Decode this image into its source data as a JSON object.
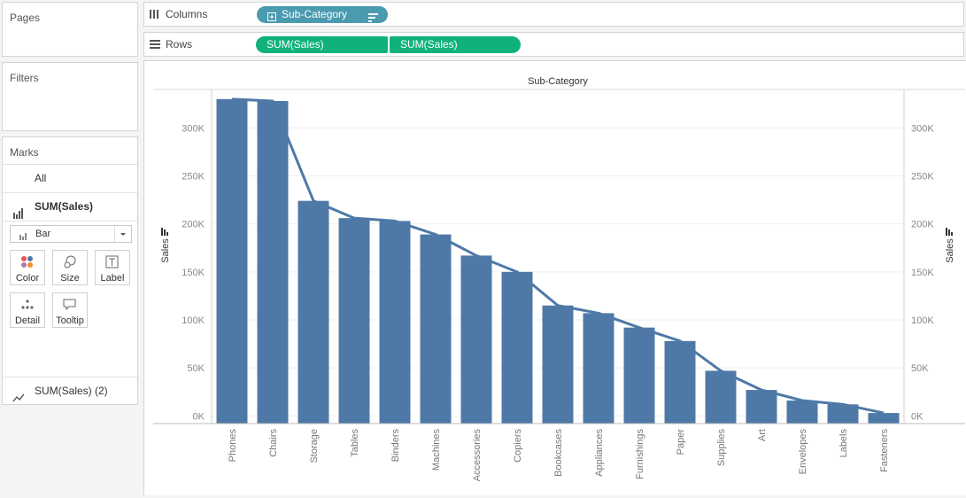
{
  "left_panel": {
    "pages_title": "Pages",
    "filters_title": "Filters",
    "marks": {
      "title": "Marks",
      "all_label": "All",
      "sum_sales_label": "SUM(Sales)",
      "mark_type": "Bar",
      "buttons": [
        "Color",
        "Size",
        "Label",
        "Detail",
        "Tooltip"
      ],
      "second_measure_label": "SUM(Sales) (2)"
    }
  },
  "shelves": {
    "columns_label": "Columns",
    "columns_pill": "Sub-Category",
    "rows_label": "Rows",
    "rows_pills": [
      "SUM(Sales)",
      "SUM(Sales)"
    ]
  },
  "colors": {
    "bar": "#4e79a7",
    "line": "#4e79a7",
    "pill_dimension": "#4a9ab0",
    "pill_measure": "#10b27a"
  },
  "chart_data": {
    "type": "bar",
    "title": "Sub-Category",
    "xlabel": "",
    "ylabel": "Sales",
    "y2label": "Sales",
    "ylim": [
      -8000,
      340000
    ],
    "yticks": [
      0,
      50000,
      100000,
      150000,
      200000,
      250000,
      300000
    ],
    "ytick_labels": [
      "0K",
      "50K",
      "100K",
      "150K",
      "200K",
      "250K",
      "300K"
    ],
    "categories": [
      "Phones",
      "Chairs",
      "Storage",
      "Tables",
      "Binders",
      "Machines",
      "Accessories",
      "Copiers",
      "Bookcases",
      "Appliances",
      "Furnishings",
      "Paper",
      "Supplies",
      "Art",
      "Envelopes",
      "Labels",
      "Fasteners"
    ],
    "series": [
      {
        "type": "bar",
        "axis": "left",
        "values": [
          330000,
          328000,
          224000,
          206000,
          203000,
          189000,
          167000,
          150000,
          115000,
          107000,
          92000,
          78000,
          47000,
          27000,
          16000,
          12000,
          3000
        ]
      },
      {
        "type": "line",
        "axis": "right",
        "values": [
          330000,
          328000,
          224000,
          206000,
          203000,
          189000,
          167000,
          150000,
          115000,
          107000,
          92000,
          78000,
          47000,
          27000,
          16000,
          12000,
          3000
        ]
      }
    ],
    "grid": true
  }
}
